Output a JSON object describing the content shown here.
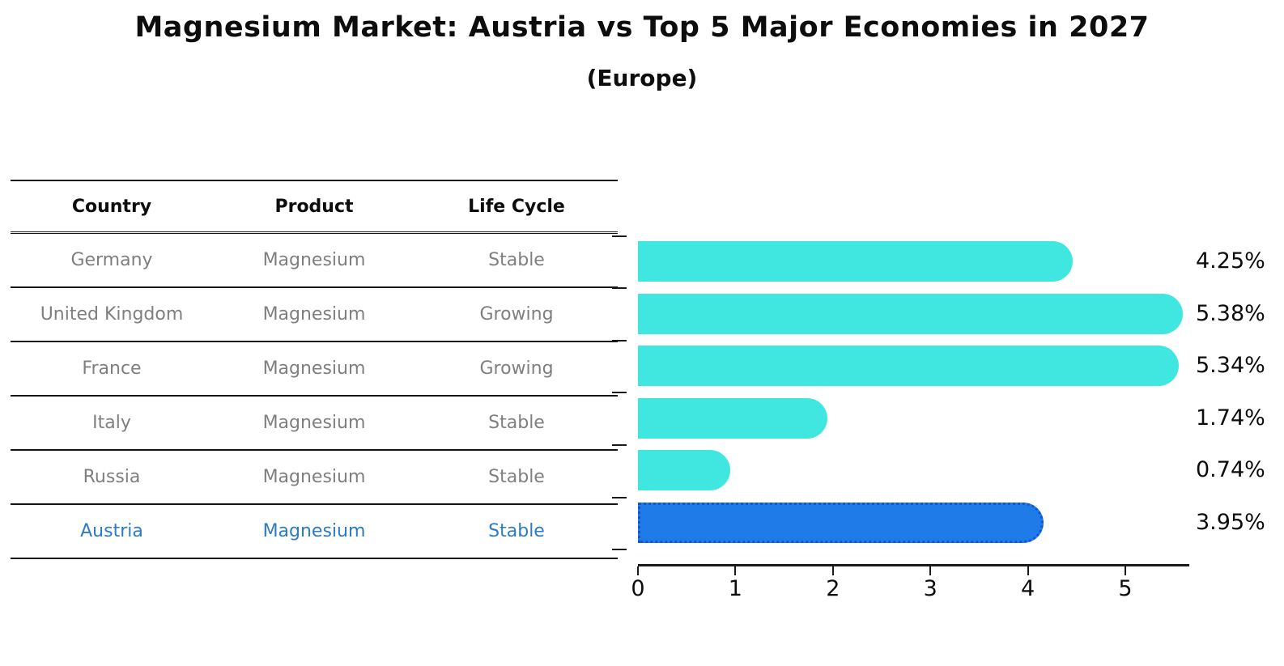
{
  "title": "Magnesium Market: Austria vs Top 5 Major Economies in 2027",
  "subtitle": "(Europe)",
  "table": {
    "headers": [
      "Country",
      "Product",
      "Life Cycle"
    ],
    "rows": [
      {
        "country": "Germany",
        "product": "Magnesium",
        "life_cycle": "Stable",
        "highlighted": false
      },
      {
        "country": "United Kingdom",
        "product": "Magnesium",
        "life_cycle": "Growing",
        "highlighted": false
      },
      {
        "country": "France",
        "product": "Magnesium",
        "life_cycle": "Growing",
        "highlighted": false
      },
      {
        "country": "Italy",
        "product": "Magnesium",
        "life_cycle": "Stable",
        "highlighted": false
      },
      {
        "country": "Russia",
        "product": "Magnesium",
        "life_cycle": "Stable",
        "highlighted": false
      },
      {
        "country": "Austria",
        "product": "Magnesium",
        "life_cycle": "Stable",
        "highlighted": true
      }
    ]
  },
  "chart_data": {
    "type": "bar",
    "orientation": "horizontal",
    "title": "Magnesium Market: Austria vs Top 5 Major Economies in 2027",
    "subtitle": "(Europe)",
    "categories": [
      "Germany",
      "United Kingdom",
      "France",
      "Italy",
      "Russia",
      "Austria"
    ],
    "values": [
      4.25,
      5.38,
      5.34,
      1.74,
      0.74,
      3.95
    ],
    "value_labels": [
      "4.25%",
      "5.38%",
      "5.34%",
      "1.74%",
      "0.74%",
      "3.95%"
    ],
    "x_ticks": [
      "0",
      "1",
      "2",
      "3",
      "4",
      "5"
    ],
    "xlim": [
      0,
      5.65
    ],
    "grid": false,
    "legend": false,
    "highlight_category": "Austria",
    "colors": {
      "bar": "#40E7E0",
      "highlight_bar": "#1F7BE8",
      "highlight_border": "#1156CC",
      "axis": "#1a1a1a",
      "table_text": "#7f7f7f",
      "highlight_text": "#2b7bc8"
    }
  }
}
